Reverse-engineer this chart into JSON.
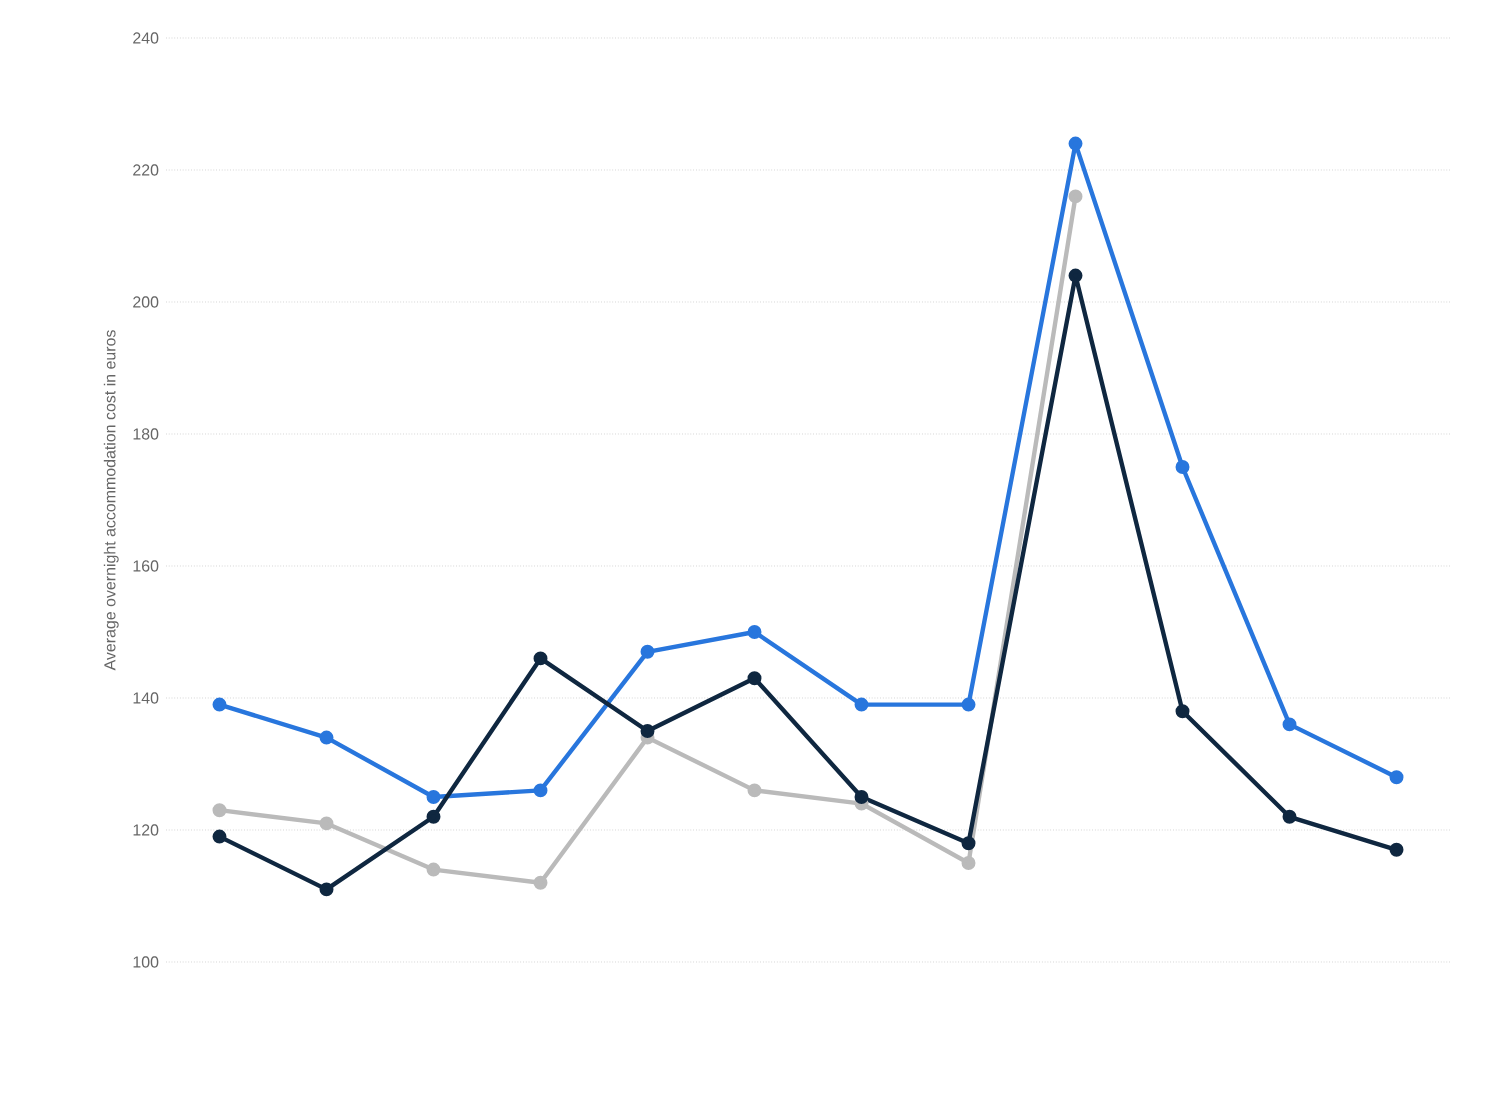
{
  "chart_data": {
    "type": "line",
    "ylabel": "Average overnight accommodation cost in euros",
    "categories": [
      null,
      null,
      null,
      null,
      null,
      null,
      null,
      null,
      null,
      null,
      null,
      null
    ],
    "series": [
      {
        "color": "#2876dd",
        "values": [
          139,
          134,
          125,
          126,
          147,
          150,
          139,
          139,
          224,
          175,
          136,
          128
        ]
      },
      {
        "color": "#bababa",
        "values": [
          123,
          121,
          114,
          112,
          134,
          126,
          124,
          115,
          216,
          null,
          null,
          null
        ]
      },
      {
        "color": "#0f2740",
        "values": [
          119,
          111,
          122,
          146,
          135,
          143,
          125,
          118,
          204,
          138,
          122,
          117
        ]
      }
    ],
    "ylim": [
      100,
      240
    ],
    "yticks": [
      100,
      120,
      140,
      160,
      180,
      200,
      220,
      240
    ],
    "grid": "y",
    "marker": "circle",
    "line_style": "solid"
  }
}
